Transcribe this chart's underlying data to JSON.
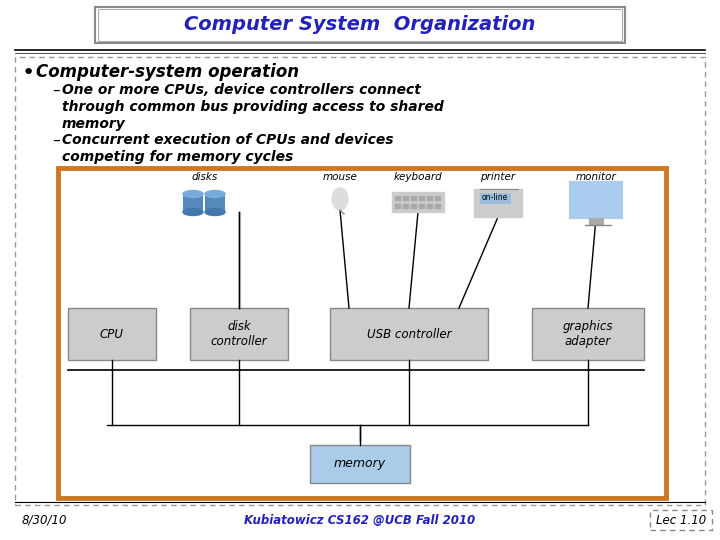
{
  "title": "Computer System  Organization",
  "title_color": "#2222bb",
  "bg_color": "#ffffff",
  "bullet_text": "Computer-system operation",
  "sub1_line1": "One or more CPUs, device controllers connect",
  "sub1_line2": "through common bus providing access to shared",
  "sub1_line3": "memory",
  "sub2_line1": "Concurrent execution of CPUs and devices",
  "sub2_line2": "competing for memory cycles",
  "footer_left": "8/30/10",
  "footer_center": "Kubiatowicz CS162 @UCB Fall 2010",
  "footer_right": "Lec 1.10",
  "footer_color": "#2222bb",
  "orange_border": "#cc7722",
  "box_fill": "#cccccc",
  "memory_fill": "#aacce8",
  "memory_label": "memory"
}
